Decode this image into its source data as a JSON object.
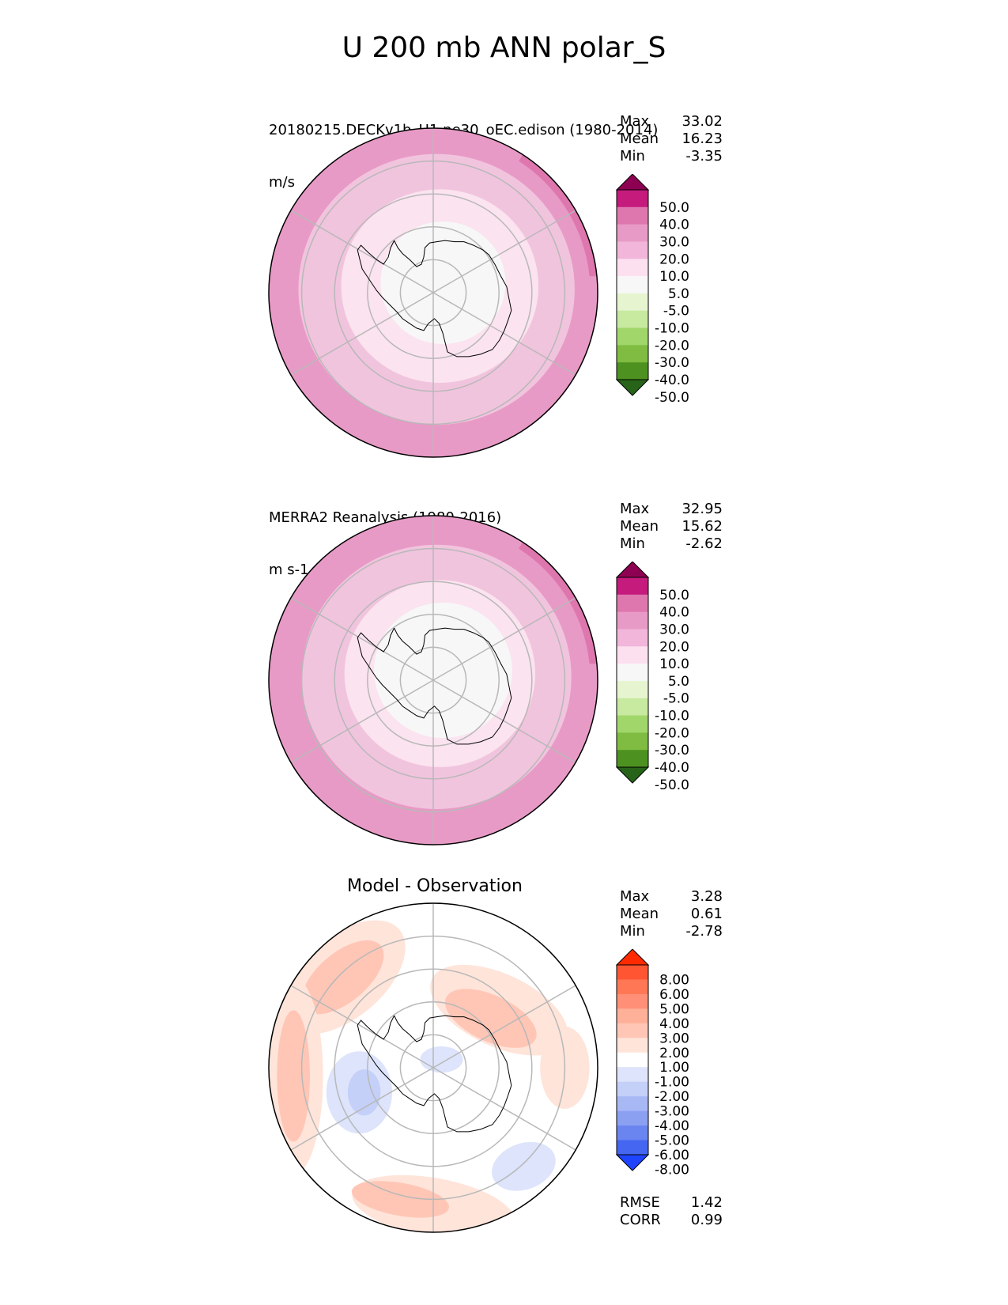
{
  "title": "U 200 mb ANN polar_S",
  "panels": [
    {
      "name": "test",
      "label": "20180215.DECKv1b_H1.ne30_oEC.edison (1980-2014)",
      "units": "m/s",
      "stats": {
        "max_label": "Max",
        "max": "33.02",
        "mean_label": "Mean",
        "mean": "16.23",
        "min_label": "Min",
        "min": "-3.35"
      },
      "colorbar": {
        "ticks": [
          "50.0",
          "40.0",
          "30.0",
          "20.0",
          "10.0",
          "5.0",
          "-5.0",
          "-10.0",
          "-20.0",
          "-30.0",
          "-40.0",
          "-50.0"
        ],
        "colors": [
          "#8e0152",
          "#c51b7d",
          "#de77ae",
          "#e89ac6",
          "#f1b6da",
          "#fde0ef",
          "#f7f7f7",
          "#e6f5d0",
          "#c7e9a0",
          "#a1d76a",
          "#7fbc41",
          "#4d9221",
          "#276419"
        ]
      },
      "rings": [
        {
          "r": 1.0,
          "color": "#e89ac6"
        },
        {
          "r": 0.84,
          "color": "#f1c4de"
        },
        {
          "r": 0.6,
          "color": "#fbe3ef"
        },
        {
          "r": 0.38,
          "color": "#f7f7f7"
        }
      ]
    },
    {
      "name": "reference",
      "label": "MERRA2 Reanalysis (1980-2016)",
      "units": "m s-1",
      "stats": {
        "max_label": "Max",
        "max": "32.95",
        "mean_label": "Mean",
        "mean": "15.62",
        "min_label": "Min",
        "min": "-2.62"
      },
      "colorbar": {
        "ticks": [
          "50.0",
          "40.0",
          "30.0",
          "20.0",
          "10.0",
          "5.0",
          "-5.0",
          "-10.0",
          "-20.0",
          "-30.0",
          "-40.0",
          "-50.0"
        ],
        "colors": [
          "#8e0152",
          "#c51b7d",
          "#de77ae",
          "#e89ac6",
          "#f1b6da",
          "#fde0ef",
          "#f7f7f7",
          "#e6f5d0",
          "#c7e9a0",
          "#a1d76a",
          "#7fbc41",
          "#4d9221",
          "#276419"
        ]
      },
      "rings": [
        {
          "r": 1.0,
          "color": "#e89ac6"
        },
        {
          "r": 0.82,
          "color": "#f1c4de"
        },
        {
          "r": 0.58,
          "color": "#fbe3ef"
        },
        {
          "r": 0.42,
          "color": "#f7f7f7"
        }
      ]
    },
    {
      "name": "difference",
      "label": "Model - Observation",
      "units": "",
      "stats": {
        "max_label": "Max",
        "max": "3.28",
        "mean_label": "Mean",
        "mean": "0.61",
        "min_label": "Min",
        "min": "-2.78"
      },
      "metrics": {
        "rmse_label": "RMSE",
        "rmse": "1.42",
        "corr_label": "CORR",
        "corr": "0.99"
      },
      "colorbar": {
        "ticks": [
          "8.00",
          "6.00",
          "5.00",
          "4.00",
          "3.00",
          "2.00",
          "1.00",
          "-1.00",
          "-2.00",
          "-3.00",
          "-4.00",
          "-5.00",
          "-6.00",
          "-8.00"
        ],
        "colors": [
          "#ff2a00",
          "#ff5533",
          "#ff7755",
          "#ff9077",
          "#ffb099",
          "#ffc6b6",
          "#ffe4da",
          "#ffffff",
          "#dde4fb",
          "#c4d0f8",
          "#a8b8f5",
          "#8ca0f2",
          "#6a84f0",
          "#4466f0",
          "#1f44ff"
        ]
      }
    }
  ],
  "colors": {
    "gridline": "#b8b8b8",
    "coastline": "#000000"
  }
}
